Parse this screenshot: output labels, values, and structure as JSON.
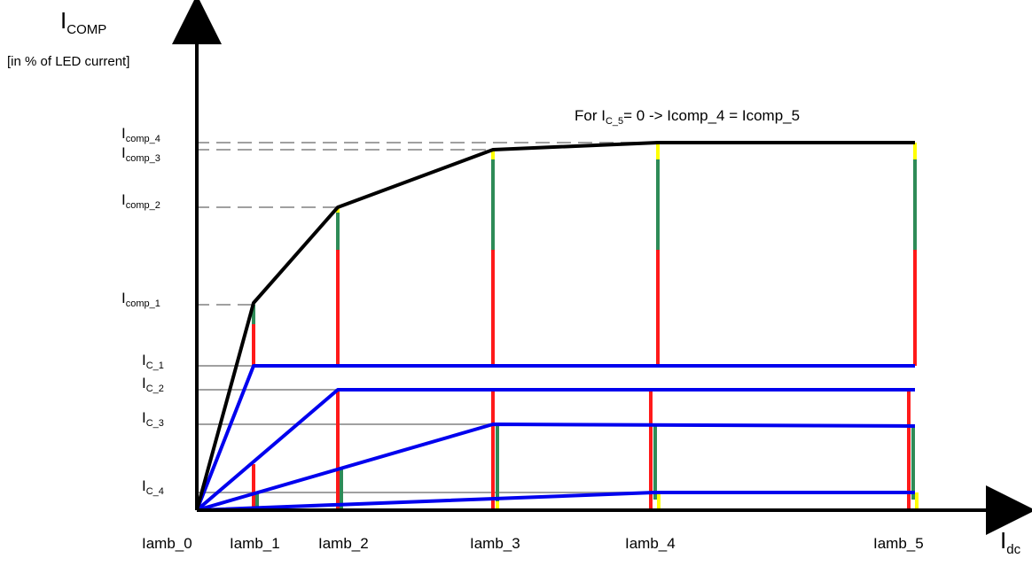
{
  "yaxis": {
    "symbol": "I",
    "sub": "COMP",
    "unit": "[in % of LED current]"
  },
  "xaxis": {
    "symbol": "I",
    "sub": "dc"
  },
  "note": {
    "pre": "For  I",
    "sub": "C_5",
    "post": "= 0  ->  Icomp_4 = Icomp_5"
  },
  "y_labels": [
    {
      "id": "icomp4",
      "base": "I",
      "sub": "comp_4"
    },
    {
      "id": "icomp3",
      "base": "I",
      "sub": "comp_3"
    },
    {
      "id": "icomp2",
      "base": "I",
      "sub": "comp_2"
    },
    {
      "id": "icomp1",
      "base": "I",
      "sub": "comp_1"
    },
    {
      "id": "ic1",
      "base": "I",
      "sub": "C_1"
    },
    {
      "id": "ic2",
      "base": "I",
      "sub": "C_2"
    },
    {
      "id": "ic3",
      "base": "I",
      "sub": "C_3"
    },
    {
      "id": "ic4",
      "base": "I",
      "sub": "C_4"
    }
  ],
  "x_labels": [
    "Iamb_0",
    "Iamb_1",
    "Iamb_2",
    "Iamb_3",
    "Iamb_4",
    "Iamb_5"
  ],
  "colors": {
    "compensation_curve": "#000000",
    "channel_curves": "#0000ee",
    "segment_red": "#ff1a1a",
    "segment_green": "#2e8b57",
    "segment_yellow": "#ffff00",
    "guide_dashed": "#a0a0a0",
    "guide_solid": "#a0a0a0"
  }
}
